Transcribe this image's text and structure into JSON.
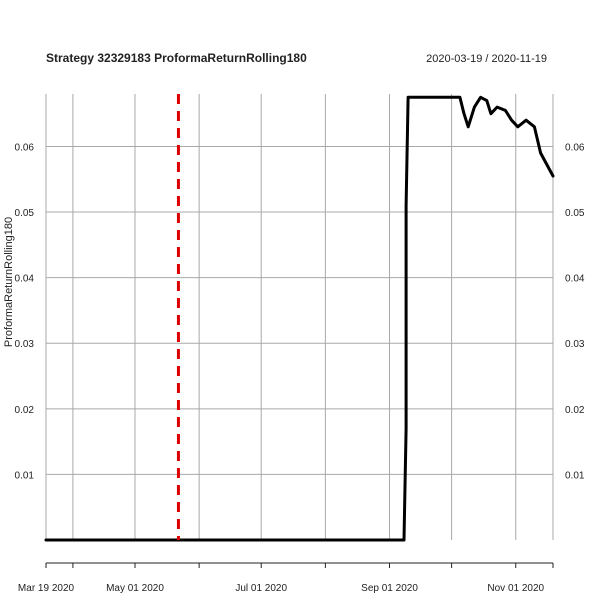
{
  "chart_data": {
    "type": "line",
    "title": "Strategy 32329183 ProformaReturnRolling180",
    "date_range": "2020-03-19 / 2020-11-19",
    "ylabel": "ProformaReturnRolling180",
    "xlabel": "",
    "x_range": [
      "2020-03-19",
      "2020-11-19"
    ],
    "ylim": [
      0.0,
      0.068
    ],
    "y_ticks": [
      0.01,
      0.02,
      0.03,
      0.04,
      0.05,
      0.06
    ],
    "y_tick_labels": [
      "0.01",
      "0.02",
      "0.03",
      "0.04",
      "0.05",
      "0.06"
    ],
    "x_gridlines": [
      "2020-04-01",
      "2020-05-01",
      "2020-06-01",
      "2020-07-01",
      "2020-08-01",
      "2020-09-01",
      "2020-10-01",
      "2020-11-01"
    ],
    "x_tick_labels": [
      {
        "date": "2020-03-19",
        "label": "Mar 19 2020"
      },
      {
        "date": "2020-05-01",
        "label": "May 01 2020"
      },
      {
        "date": "2020-07-01",
        "label": "Jul 01 2020"
      },
      {
        "date": "2020-09-01",
        "label": "Sep 01 2020"
      },
      {
        "date": "2020-11-01",
        "label": "Nov 01 2020"
      }
    ],
    "grid": true,
    "marker_line": {
      "date": "2020-05-22",
      "color": "#dd0000",
      "style": "dashed"
    },
    "series": [
      {
        "color": "#000000",
        "points": [
          [
            "2020-03-19",
            0.0
          ],
          [
            "2020-09-08",
            0.0
          ],
          [
            "2020-09-09",
            0.017
          ],
          [
            "2020-09-09",
            0.051
          ],
          [
            "2020-09-10",
            0.0675
          ],
          [
            "2020-10-05",
            0.0675
          ],
          [
            "2020-10-07",
            0.065
          ],
          [
            "2020-10-09",
            0.063
          ],
          [
            "2020-10-12",
            0.066
          ],
          [
            "2020-10-15",
            0.0675
          ],
          [
            "2020-10-18",
            0.067
          ],
          [
            "2020-10-20",
            0.065
          ],
          [
            "2020-10-23",
            0.066
          ],
          [
            "2020-10-27",
            0.0655
          ],
          [
            "2020-10-30",
            0.064
          ],
          [
            "2020-11-02",
            0.063
          ],
          [
            "2020-11-06",
            0.064
          ],
          [
            "2020-11-10",
            0.063
          ],
          [
            "2020-11-13",
            0.059
          ],
          [
            "2020-11-19",
            0.0555
          ]
        ]
      }
    ]
  }
}
